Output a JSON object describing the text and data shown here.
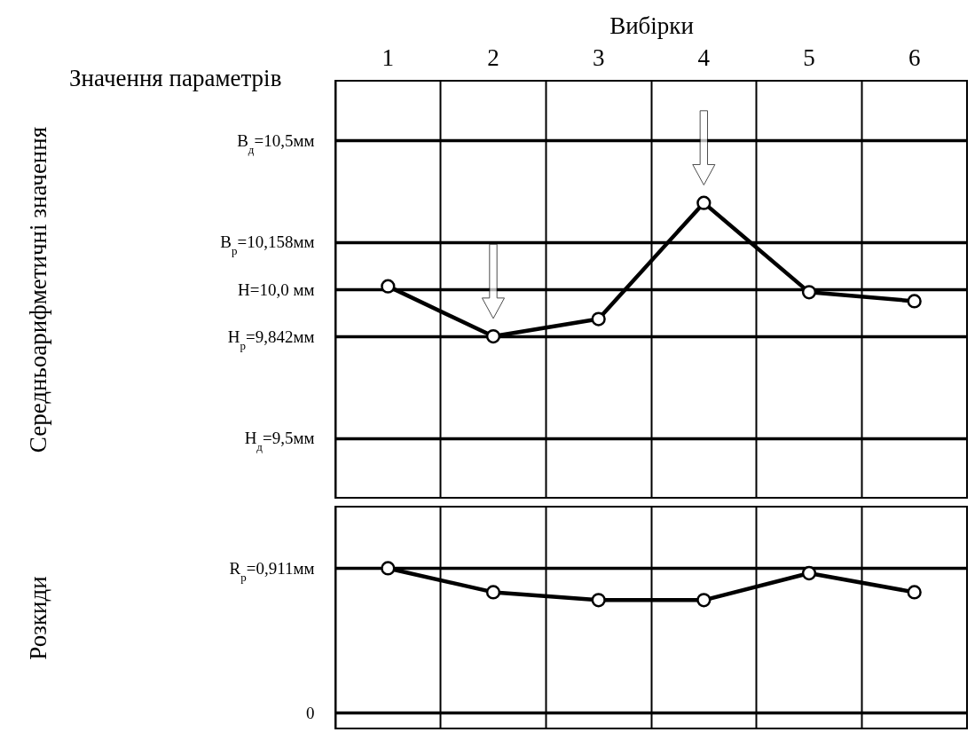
{
  "chart_data": [
    {
      "type": "line",
      "title": "Значення параметрів",
      "xlabel": "Вибірки",
      "ylabel": "Середньоарифметичні значення",
      "categories": [
        "1",
        "2",
        "3",
        "4",
        "5",
        "6"
      ],
      "values": [
        10.01,
        9.842,
        9.9,
        10.29,
        9.99,
        9.96
      ],
      "color": "#000000",
      "ylim": [
        9.3,
        10.7
      ],
      "yticks": [
        {
          "value": 10.5,
          "label": "B$_{д}$=10,5мм"
        },
        {
          "value": 10.158,
          "label": "B$_{р}$=10,158мм"
        },
        {
          "value": 10.0,
          "label": "H=10,0 мм"
        },
        {
          "value": 9.842,
          "label": "H$_{р}$=9,842мм"
        },
        {
          "value": 9.5,
          "label": "H$_{д}$=9,5мм"
        }
      ],
      "grid": true,
      "marker": "circle"
    },
    {
      "type": "line",
      "ylabel": "Розкиди",
      "categories": [
        "1",
        "2",
        "3",
        "4",
        "5",
        "6"
      ],
      "values": [
        0.911,
        0.76,
        0.71,
        0.71,
        0.88,
        0.76
      ],
      "color": "#000000",
      "ylim": [
        -0.1,
        1.3
      ],
      "yticks": [
        {
          "value": 0.911,
          "label": "R$_{р}$=0,911мм"
        },
        0
      ],
      "grid": true,
      "marker": "circle",
      "tick_labels": "y"
    }
  ]
}
